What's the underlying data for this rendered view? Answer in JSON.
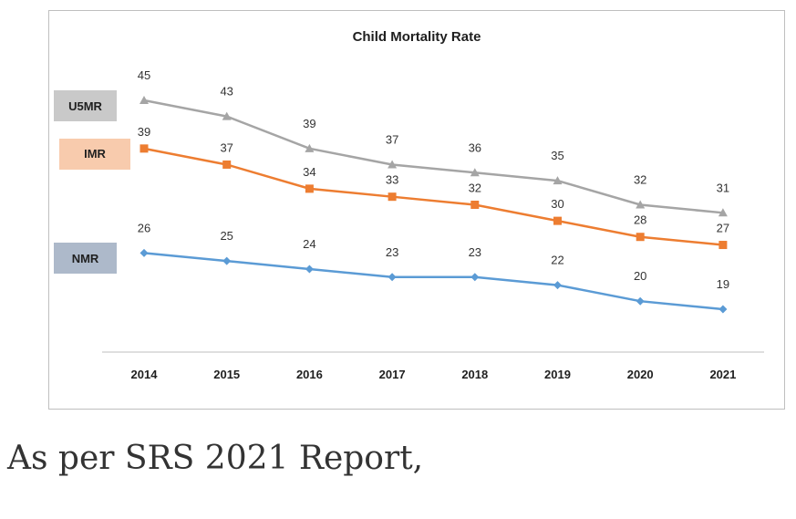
{
  "chart_data": {
    "type": "line",
    "title": "Child Mortality Rate",
    "categories": [
      "2014",
      "2015",
      "2016",
      "2017",
      "2018",
      "2019",
      "2020",
      "2021"
    ],
    "series": [
      {
        "name": "U5MR",
        "values": [
          45,
          43,
          39,
          37,
          36,
          35,
          32,
          31
        ],
        "color": "#a5a5a5",
        "tag_bg": "#c9c9c9",
        "marker": "triangle"
      },
      {
        "name": "IMR",
        "values": [
          39,
          37,
          34,
          33,
          32,
          30,
          28,
          27
        ],
        "color": "#ed7d31",
        "tag_bg": "#f8cbad",
        "marker": "square"
      },
      {
        "name": "NMR",
        "values": [
          26,
          25,
          24,
          23,
          23,
          22,
          20,
          19
        ],
        "color": "#5b9bd5",
        "tag_bg": "#adb9ca",
        "marker": "diamond"
      }
    ],
    "xlabel": "",
    "ylabel": "",
    "grid": false,
    "legend": "left",
    "data_labels": true
  },
  "caption": "As per SRS 2021 Report,"
}
